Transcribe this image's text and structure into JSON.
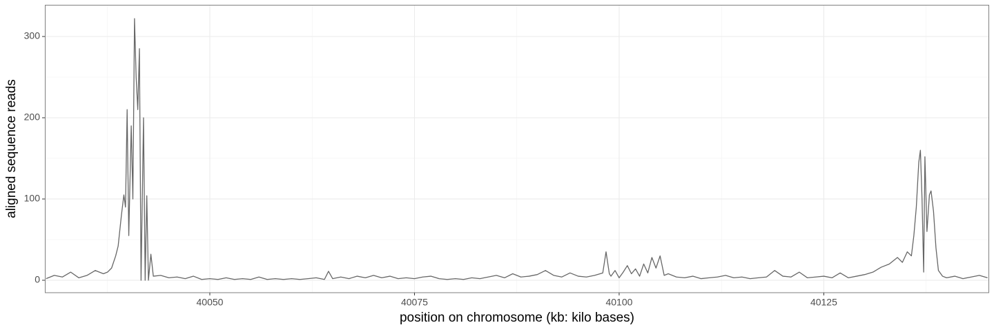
{
  "chart_data": {
    "type": "line",
    "x_label": "position on chromosome (kb: kilo bases)",
    "y_label": "aligned sequence reads",
    "xlim": [
      40029.85,
      40145.2
    ],
    "ylim": [
      -15.3,
      339
    ],
    "xticks": [
      40050,
      40075,
      40100,
      40125
    ],
    "yticks": [
      0,
      100,
      200,
      300
    ],
    "x_minor_grid": [
      40037.5,
      40062.5,
      40087.5,
      40112.5,
      40137.5
    ],
    "y_minor_grid": [
      50,
      150,
      250
    ],
    "grid": true,
    "series": [
      {
        "color": "#666666",
        "x": [
          40030,
          40031,
          40032,
          40033,
          40034,
          40035,
          40036,
          40037,
          40037.5,
          40038,
          40038.5,
          40038.8,
          40039.2,
          40039.5,
          40039.7,
          40039.9,
          40040.1,
          40040.4,
          40040.6,
          40040.8,
          40041.0,
          40041.2,
          40041.4,
          40041.6,
          40041.9,
          40042.1,
          40042.3,
          40042.5,
          40042.8,
          40043.1,
          40044,
          40045,
          40046,
          40047,
          40048,
          40049,
          40050,
          40051,
          40052,
          40053,
          40054,
          40055,
          40056,
          40057,
          40058,
          40059,
          40060,
          40061,
          40062,
          40063,
          40064,
          40064.5,
          40065,
          40066,
          40067,
          40068,
          40069,
          40070,
          40071,
          40072,
          40073,
          40074,
          40075,
          40076,
          40077,
          40078,
          40079,
          40080,
          40081,
          40082,
          40083,
          40084,
          40085,
          40086,
          40087,
          40088,
          40089,
          40090,
          40091,
          40092,
          40093,
          40094,
          40095,
          40096,
          40097,
          40098,
          40098.4,
          40098.8,
          40099,
          40099.5,
          40100,
          40100.5,
          40101,
          40101.5,
          40102,
          40102.5,
          40103,
          40103.5,
          40104,
          40104.5,
          40105,
          40105.5,
          40106,
          40107,
          40108,
          40109,
          40110,
          40111,
          40112,
          40113,
          40114,
          40115,
          40116,
          40117,
          40118,
          40119,
          40120,
          40121,
          40122,
          40123,
          40124,
          40125,
          40126,
          40127,
          40128,
          40129,
          40130,
          40131,
          40132,
          40133,
          40134,
          40134.6,
          40135.2,
          40135.7,
          40136,
          40136.3,
          40136.6,
          40136.8,
          40137,
          40137.2,
          40137.35,
          40137.6,
          40137.9,
          40138.1,
          40138.4,
          40138.7,
          40139,
          40139.5,
          40140,
          40141,
          40142,
          40143,
          40144,
          40145
        ],
        "values": [
          2,
          6,
          4,
          10,
          3,
          6,
          12,
          8,
          10,
          15,
          30,
          42,
          80,
          105,
          90,
          210,
          55,
          190,
          100,
          322,
          250,
          210,
          285,
          0,
          200,
          0,
          104,
          0,
          32,
          5,
          6,
          3,
          4,
          2,
          5,
          1,
          2,
          1,
          3,
          1,
          2,
          1,
          4,
          1,
          2,
          1,
          2,
          1,
          2,
          3,
          1,
          11,
          2,
          4,
          2,
          5,
          3,
          6,
          3,
          5,
          2,
          3,
          2,
          4,
          5,
          2,
          1,
          2,
          1,
          3,
          2,
          4,
          6,
          3,
          8,
          4,
          5,
          7,
          12,
          6,
          4,
          9,
          5,
          4,
          6,
          9,
          35,
          8,
          5,
          12,
          3,
          10,
          18,
          8,
          14,
          5,
          20,
          9,
          28,
          15,
          30,
          6,
          8,
          4,
          3,
          5,
          2,
          3,
          4,
          6,
          3,
          4,
          2,
          3,
          4,
          12,
          5,
          4,
          10,
          3,
          4,
          5,
          3,
          9,
          3,
          5,
          7,
          10,
          16,
          20,
          28,
          22,
          35,
          30,
          55,
          90,
          145,
          160,
          100,
          10,
          152,
          60,
          105,
          110,
          85,
          40,
          12,
          5,
          3,
          5,
          2,
          4,
          6,
          3
        ]
      }
    ]
  }
}
